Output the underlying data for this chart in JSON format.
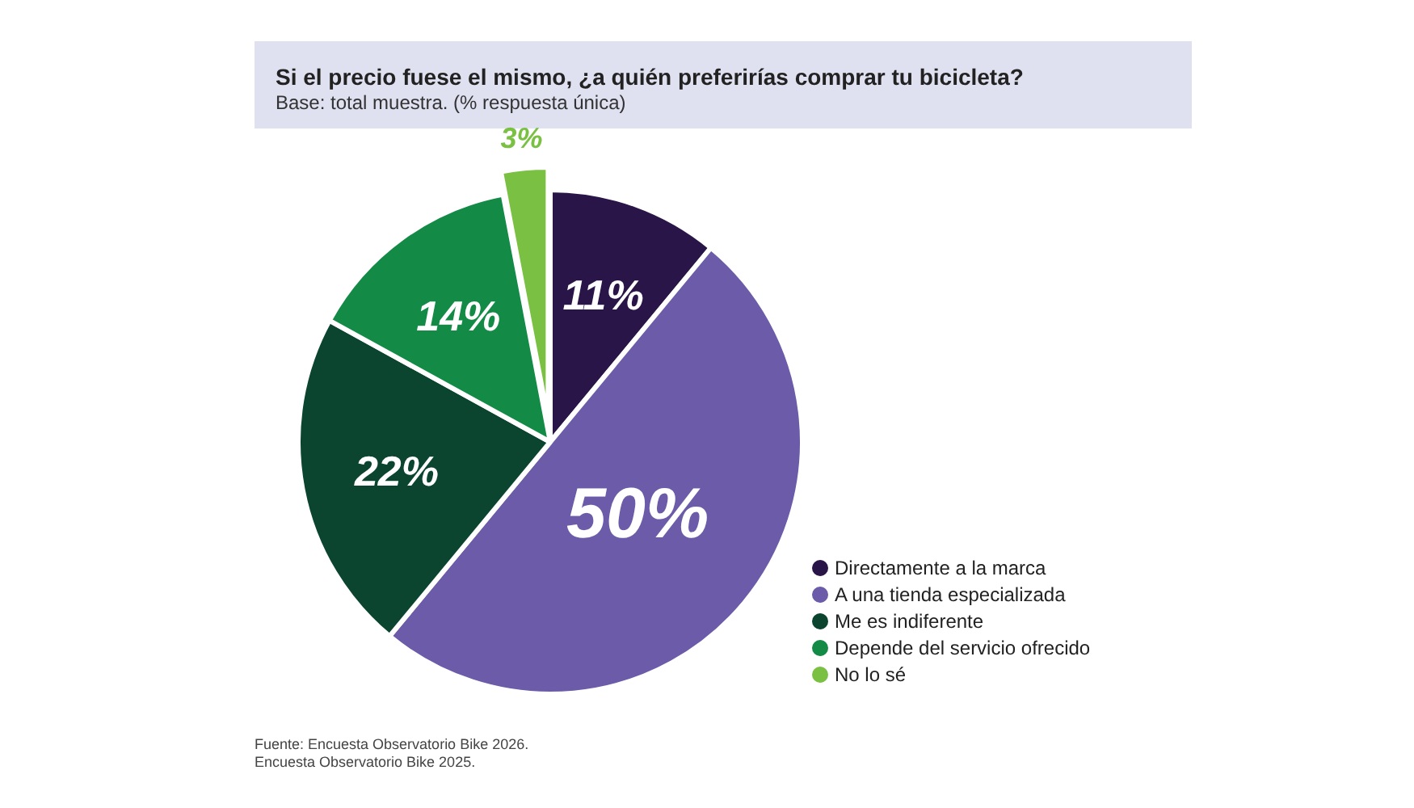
{
  "chart_data": {
    "type": "pie",
    "title": "Si el precio fuese el mismo, ¿a quién preferirías comprar tu bicicleta?",
    "subtitle": "Base: total muestra. (% respuesta única)",
    "categories": [
      "Directamente a la marca",
      "A una tienda especializada",
      "Me es indiferente",
      "Depende del servicio ofrecido",
      "No lo sé"
    ],
    "values": [
      11,
      50,
      22,
      14,
      3
    ],
    "colors": [
      "#2a1548",
      "#6b5ba8",
      "#0b4530",
      "#138a45",
      "#7ac143"
    ],
    "value_labels": [
      "11%",
      "50%",
      "22%",
      "14%",
      "3%"
    ],
    "legend": "bottom right",
    "annotations": [
      "Fuente: Encuesta Observatorio Bike 2026.",
      "Encuesta Observatorio Bike 2025."
    ]
  }
}
